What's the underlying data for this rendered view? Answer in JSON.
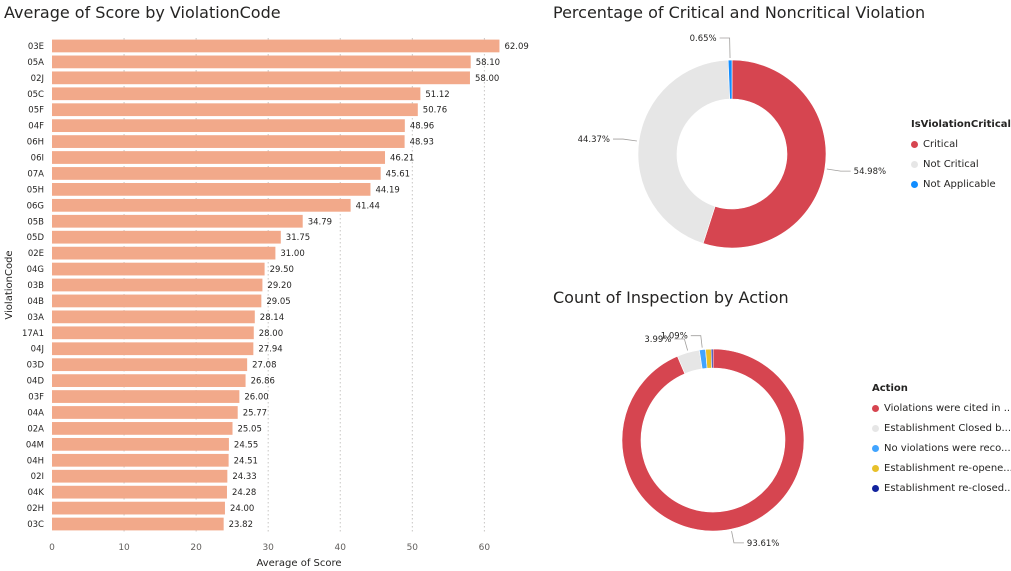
{
  "chart_data": [
    {
      "type": "bar",
      "title": "Average of Score by ViolationCode",
      "xlabel": "Average of Score",
      "ylabel": "ViolationCode",
      "xlim": [
        0,
        63
      ],
      "xticks": [
        0,
        10,
        20,
        30,
        40,
        50,
        60
      ],
      "grid": true,
      "bar_color": "#F2A98A",
      "categories": [
        "03E",
        "05A",
        "02J",
        "05C",
        "05F",
        "04F",
        "06H",
        "06I",
        "07A",
        "05H",
        "06G",
        "05B",
        "05D",
        "02E",
        "04G",
        "03B",
        "04B",
        "03A",
        "17A1",
        "04J",
        "03D",
        "04D",
        "03F",
        "04A",
        "02A",
        "04M",
        "04H",
        "02I",
        "04K",
        "02H",
        "03C"
      ],
      "values": [
        62.09,
        58.1,
        58.0,
        51.12,
        50.76,
        48.96,
        48.93,
        46.21,
        45.61,
        44.19,
        41.44,
        34.79,
        31.75,
        31.0,
        29.5,
        29.2,
        29.05,
        28.14,
        28.0,
        27.94,
        27.08,
        26.86,
        26.0,
        25.77,
        25.05,
        24.55,
        24.51,
        24.33,
        24.28,
        24.0,
        23.82
      ],
      "data_labels": [
        "62.09",
        "58.10",
        "58.00",
        "51.12",
        "50.76",
        "48.96",
        "48.93",
        "46.21",
        "45.61",
        "44.19",
        "41.44",
        "34.79",
        "31.75",
        "31.00",
        "29.50",
        "29.20",
        "29.05",
        "28.14",
        "28.00",
        "27.94",
        "27.08",
        "26.86",
        "26.00",
        "25.77",
        "25.05",
        "24.55",
        "24.51",
        "24.33",
        "24.28",
        "24.00",
        "23.82"
      ]
    },
    {
      "type": "pie",
      "title": "Percentage of Critical and Noncritical Violation",
      "legend_title": "IsViolationCritical",
      "legend_position": "right",
      "slices": [
        {
          "name": "Critical",
          "value": 54.98,
          "label": "54.98%",
          "color": "#D64550"
        },
        {
          "name": "Not Critical",
          "value": 44.37,
          "label": "44.37%",
          "color": "#E6E6E6"
        },
        {
          "name": "Not Applicable",
          "value": 0.65,
          "label": "0.65%",
          "color": "#118DFF"
        }
      ]
    },
    {
      "type": "pie",
      "title": "Count of Inspection by Action",
      "legend_title": "Action",
      "legend_position": "right",
      "slices": [
        {
          "name": "Violations were cited in ...",
          "value": 93.61,
          "label": "93.61%",
          "color": "#D64550"
        },
        {
          "name": "Establishment Closed b...",
          "value": 3.99,
          "label": "3.99%",
          "color": "#E6E6E6"
        },
        {
          "name": "No violations were reco...",
          "value": 1.09,
          "label": "1.09%",
          "color": "#41A4FF"
        },
        {
          "name": "Establishment re-opene...",
          "value": 1.0,
          "label": "",
          "color": "#E8C02A"
        },
        {
          "name": "Establishment re-closed...",
          "value": 0.31,
          "label": "",
          "color": "#12239E"
        }
      ]
    }
  ]
}
